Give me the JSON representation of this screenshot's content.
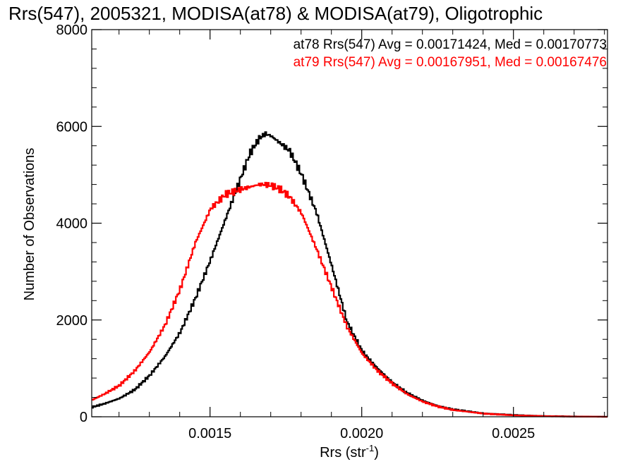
{
  "chart_data": {
    "type": "line",
    "title": "Rrs(547), 2005321, MODISA(at78) & MODISA(at79), Oligotrophic",
    "xlabel": "Rrs (str",
    "xlabel_sup": "-1",
    "xlabel_close": ")",
    "ylabel": "Number of Observations",
    "xlim": [
      0.00111,
      0.00281
    ],
    "ylim": [
      0,
      8000
    ],
    "x_ticks": [
      0.0015,
      0.002,
      0.0025
    ],
    "x_tick_labels": [
      "0.0015",
      "0.0020",
      "0.0025"
    ],
    "y_ticks": [
      0,
      2000,
      4000,
      6000,
      8000
    ],
    "y_tick_labels": [
      "0",
      "2000",
      "4000",
      "6000",
      "8000"
    ],
    "grid": false,
    "legend_position": "top-right",
    "series": [
      {
        "name": "at78 Rrs(547) Avg = 0.00171424, Med = 0.00170773",
        "color": "#000000",
        "x": [
          0.00111,
          0.00115,
          0.0012,
          0.00125,
          0.0013,
          0.00135,
          0.0014,
          0.00145,
          0.0015,
          0.00155,
          0.0016,
          0.00163,
          0.00166,
          0.00168,
          0.0017,
          0.00173,
          0.00176,
          0.0018,
          0.00185,
          0.0019,
          0.00195,
          0.002,
          0.00205,
          0.0021,
          0.00215,
          0.0022,
          0.00225,
          0.0023,
          0.0024,
          0.0025,
          0.0026,
          0.0027,
          0.00281
        ],
        "y": [
          200,
          270,
          380,
          560,
          860,
          1250,
          1750,
          2450,
          3250,
          4100,
          4950,
          5450,
          5750,
          5850,
          5800,
          5650,
          5500,
          5000,
          4200,
          3100,
          1950,
          1350,
          1000,
          700,
          480,
          330,
          220,
          150,
          70,
          35,
          15,
          5,
          0
        ]
      },
      {
        "name": "at79 Rrs(547) Avg = 0.00167951, Med = 0.00167476",
        "color": "#ff0000",
        "x": [
          0.00111,
          0.00115,
          0.0012,
          0.00125,
          0.0013,
          0.00135,
          0.0014,
          0.00145,
          0.0015,
          0.00155,
          0.0016,
          0.00163,
          0.00166,
          0.00168,
          0.0017,
          0.00173,
          0.00176,
          0.0018,
          0.00185,
          0.0019,
          0.00195,
          0.002,
          0.00205,
          0.0021,
          0.00215,
          0.0022,
          0.00225,
          0.0023,
          0.0024,
          0.0025,
          0.0026,
          0.0027,
          0.00281
        ],
        "y": [
          350,
          470,
          650,
          950,
          1350,
          1900,
          2650,
          3600,
          4300,
          4600,
          4700,
          4750,
          4800,
          4800,
          4780,
          4700,
          4550,
          4200,
          3450,
          2650,
          1850,
          1300,
          950,
          680,
          460,
          310,
          210,
          140,
          65,
          30,
          12,
          4,
          0
        ]
      }
    ]
  }
}
